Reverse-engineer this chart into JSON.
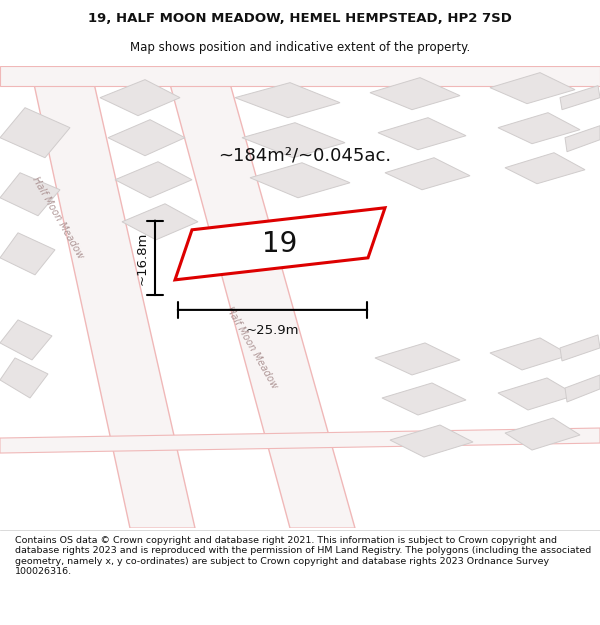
{
  "title_line1": "19, HALF MOON MEADOW, HEMEL HEMPSTEAD, HP2 7SD",
  "title_line2": "Map shows position and indicative extent of the property.",
  "footer_text": "Contains OS data © Crown copyright and database right 2021. This information is subject to Crown copyright and database rights 2023 and is reproduced with the permission of HM Land Registry. The polygons (including the associated geometry, namely x, y co-ordinates) are subject to Crown copyright and database rights 2023 Ordnance Survey 100026316.",
  "bg_map_color": "#f2eeee",
  "road_fill_color": "#f8f8f8",
  "road_edge_color": "#f0b8b8",
  "building_color": "#e8e4e4",
  "building_outline": "#d0cccc",
  "road_label_color": "#b09898",
  "property_outline_color": "#dd0000",
  "area_text": "~184m²/~0.045ac.",
  "property_number": "19",
  "width_label": "~25.9m",
  "height_label": "~16.8m"
}
